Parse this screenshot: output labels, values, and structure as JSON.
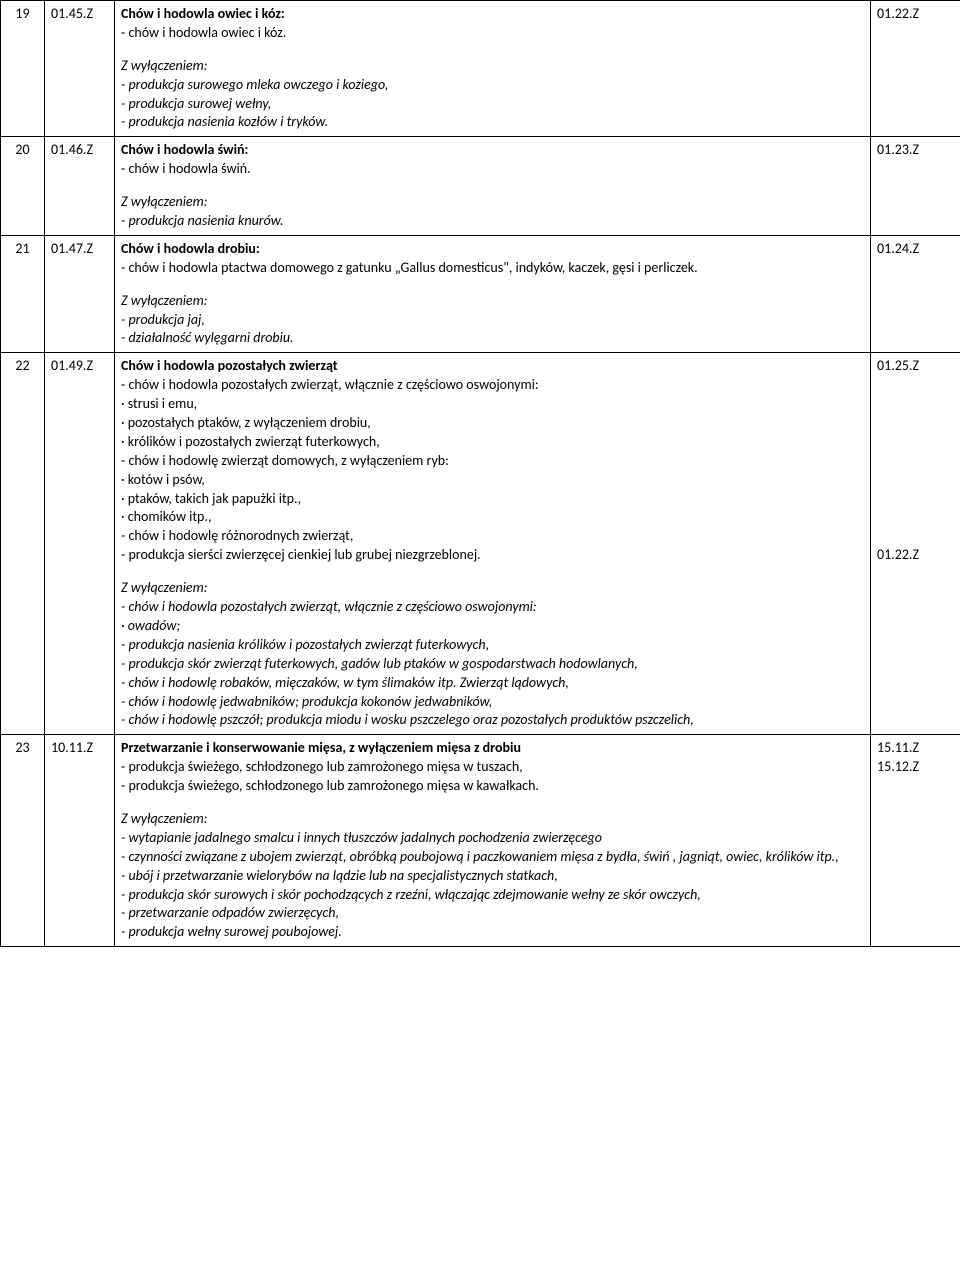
{
  "rows": [
    {
      "num": "19",
      "code": "01.45.Z",
      "ref": [
        "01.22.Z"
      ],
      "blocks": [
        {
          "lines": [
            {
              "t": "Chów i hodowla owiec i kóz:",
              "b": true
            },
            {
              "t": "- chów i hodowla owiec i kóz."
            }
          ]
        },
        {
          "lines": [
            {
              "t": "Z wyłączeniem:",
              "i": true
            },
            {
              "t": "- produkcja surowego mleka owczego i koziego,",
              "i": true
            },
            {
              "t": "- produkcja surowej wełny,",
              "i": true
            },
            {
              "t": "- produkcja nasienia kozłów i tryków.",
              "i": true
            }
          ]
        }
      ]
    },
    {
      "num": "20",
      "code": "01.46.Z",
      "ref": [
        "01.23.Z"
      ],
      "blocks": [
        {
          "lines": [
            {
              "t": "Chów i hodowla świń:",
              "b": true
            },
            {
              "t": "- chów i hodowla świń."
            }
          ]
        },
        {
          "lines": [
            {
              "t": "Z wyłączeniem:",
              "i": true
            },
            {
              "t": "- produkcja nasienia knurów.",
              "i": true
            }
          ]
        }
      ]
    },
    {
      "num": "21",
      "code": "01.47.Z",
      "ref": [
        "01.24.Z"
      ],
      "blocks": [
        {
          "lines": [
            {
              "t": "Chów i hodowla drobiu:",
              "b": true
            },
            {
              "t": "- chów i hodowla ptactwa domowego z gatunku „Gallus domesticus\", indyków, kaczek, gęsi i perliczek."
            }
          ]
        },
        {
          "lines": [
            {
              "t": "Z wyłączeniem:",
              "i": true
            },
            {
              "t": "- produkcja jaj,",
              "i": true
            },
            {
              "t": "- działalność wylęgarni drobiu.",
              "i": true
            }
          ]
        }
      ]
    },
    {
      "num": "22",
      "code": "01.49.Z",
      "ref": [
        "01.25.Z",
        "",
        "",
        "",
        "",
        "",
        "",
        "",
        "",
        "",
        "01.22.Z"
      ],
      "blocks": [
        {
          "lines": [
            {
              "t": "Chów i hodowla pozostałych zwierząt",
              "b": true
            },
            {
              "t": "- chów i hodowla pozostałych zwierząt, włącznie z częściowo oswojonymi:"
            },
            {
              "t": "· strusi i emu,"
            },
            {
              "t": "· pozostałych ptaków, z wyłączeniem drobiu,"
            },
            {
              "t": "· królików i pozostałych zwierząt futerkowych,"
            },
            {
              "t": "- chów i hodowlę zwierząt domowych, z wyłączeniem ryb:"
            },
            {
              "t": "· kotów i psów,"
            },
            {
              "t": "· ptaków, takich jak papużki itp.,"
            },
            {
              "t": "· chomików itp.,"
            },
            {
              "t": "- chów i hodowlę różnorodnych zwierząt,"
            },
            {
              "t": "- produkcja sierści zwierzęcej cienkiej lub grubej niezgrzeblonej."
            }
          ]
        },
        {
          "lines": [
            {
              "t": "Z wyłączeniem:",
              "i": true
            },
            {
              "t": "- chów i hodowla pozostałych zwierząt, włącznie z częściowo oswojonymi:",
              "i": true
            },
            {
              "t": "· owadów;",
              "i": true
            },
            {
              "t": "- produkcja nasienia królików i pozostałych zwierząt futerkowych,",
              "i": true
            },
            {
              "t": "- produkcja skór zwierząt futerkowych, gadów lub ptaków w gospodarstwach hodowlanych,",
              "i": true
            },
            {
              "t": "- chów i hodowlę robaków, mięczaków, w tym ślimaków itp. Zwierząt lądowych,",
              "i": true
            },
            {
              "t": "- chów i hodowlę jedwabników; produkcja kokonów jedwabników,",
              "i": true
            },
            {
              "t": "- chów i hodowlę pszczół; produkcja miodu i wosku pszczelego oraz pozostałych produktów pszczelich,",
              "i": true
            }
          ]
        }
      ]
    },
    {
      "num": "23",
      "code": "10.11.Z",
      "ref": [
        "15.11.Z",
        "15.12.Z"
      ],
      "blocks": [
        {
          "lines": [
            {
              "t": "Przetwarzanie i konserwowanie mięsa, z wyłączeniem mięsa z drobiu",
              "b": true
            },
            {
              "t": "- produkcja świeżego, schłodzonego lub zamrożonego mięsa w tuszach,"
            },
            {
              "t": "- produkcja świeżego, schłodzonego lub zamrożonego mięsa w kawałkach."
            }
          ]
        },
        {
          "lines": [
            {
              "t": "Z wyłączeniem:",
              "i": true
            },
            {
              "t": "- wytapianie jadalnego smalcu i innych tłuszczów jadalnych pochodzenia zwierzęcego",
              "i": true
            },
            {
              "t": "- czynności związane z ubojem zwierząt, obróbką poubojową i paczkowaniem mięsa z bydła, świń , jagniąt, owiec, królików itp.,",
              "i": true
            },
            {
              "t": "- ubój i przetwarzanie wielorybów na lądzie lub na specjalistycznych statkach,",
              "i": true
            },
            {
              "t": "- produkcja skór surowych i skór pochodzących z rzeźni, włączając zdejmowanie wełny ze skór owczych,",
              "i": true
            },
            {
              "t": "- przetwarzanie odpadów zwierzęcych,",
              "i": true
            },
            {
              "t": "- produkcja wełny surowej poubojowej.",
              "i": true
            }
          ]
        }
      ]
    }
  ]
}
